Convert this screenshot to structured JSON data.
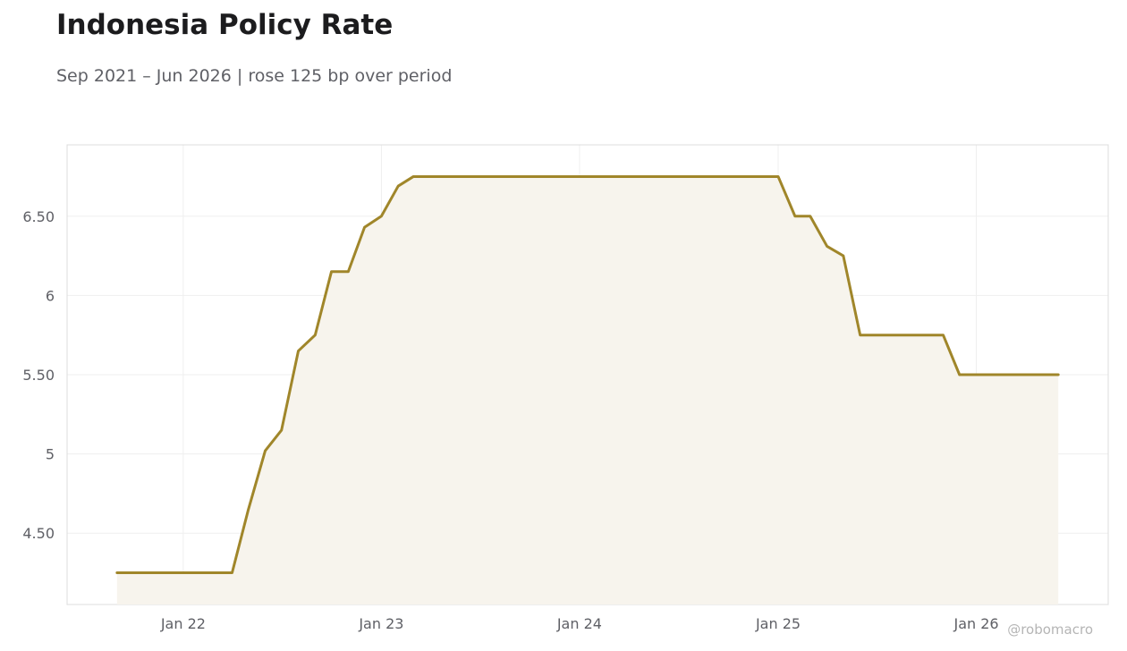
{
  "header": {
    "title": "Indonesia Policy Rate",
    "subtitle": "Sep 2021 – Jun 2026 | rose 125 bp over period"
  },
  "watermark": "@robomacro",
  "colors": {
    "line": "#a0862a",
    "fill": "#f7f4ed",
    "grid": "#efefef",
    "border": "#dddddd"
  },
  "chart_data": {
    "type": "area",
    "title": "Indonesia Policy Rate",
    "subtitle": "Sep 2021 – Jun 2026 | rose 125 bp over period",
    "xlabel": "",
    "ylabel": "",
    "xlim": [
      "2021-06-01",
      "2026-09-01"
    ],
    "ylim": [
      4.05,
      6.95
    ],
    "grid": true,
    "legend": "none",
    "x_ticks": [
      {
        "date": "2022-01-01",
        "label": "Jan 22"
      },
      {
        "date": "2023-01-01",
        "label": "Jan 23"
      },
      {
        "date": "2024-01-01",
        "label": "Jan 24"
      },
      {
        "date": "2025-01-01",
        "label": "Jan 25"
      },
      {
        "date": "2026-01-01",
        "label": "Jan 26"
      }
    ],
    "y_ticks": [
      {
        "value": 4.5,
        "label": "4.50"
      },
      {
        "value": 5,
        "label": "5"
      },
      {
        "value": 5.5,
        "label": "5.50"
      },
      {
        "value": 6,
        "label": "6"
      },
      {
        "value": 6.5,
        "label": "6.50"
      }
    ],
    "series": [
      {
        "x": [
          "2021-09-01",
          "2021-10-01",
          "2021-11-01",
          "2021-12-01",
          "2022-01-01",
          "2022-02-01",
          "2022-03-01",
          "2022-04-01",
          "2022-05-01",
          "2022-06-01",
          "2022-07-01",
          "2022-08-01",
          "2022-09-01",
          "2022-10-01",
          "2022-11-01",
          "2022-12-01",
          "2023-01-01",
          "2023-02-01",
          "2023-03-01",
          "2023-04-01",
          "2023-05-01",
          "2023-06-01",
          "2023-07-01",
          "2023-08-01",
          "2023-09-01",
          "2023-10-01",
          "2023-11-01",
          "2023-12-01",
          "2024-01-01",
          "2024-02-01",
          "2024-03-01",
          "2024-04-01",
          "2024-05-01",
          "2024-06-01",
          "2024-07-01",
          "2024-08-01",
          "2024-09-01",
          "2024-10-01",
          "2024-11-01",
          "2024-12-01",
          "2025-01-01",
          "2025-02-01",
          "2025-03-01",
          "2025-04-01",
          "2025-05-01",
          "2025-06-01",
          "2025-07-01",
          "2025-08-01",
          "2025-09-01",
          "2025-10-01",
          "2025-11-01",
          "2025-12-01",
          "2026-01-01",
          "2026-02-01",
          "2026-03-01",
          "2026-04-01",
          "2026-05-01",
          "2026-06-01"
        ],
        "values": [
          4.25,
          4.25,
          4.25,
          4.25,
          4.25,
          4.25,
          4.25,
          4.25,
          4.65,
          5.02,
          5.15,
          5.65,
          5.75,
          6.15,
          6.15,
          6.43,
          6.5,
          6.69,
          6.75,
          6.75,
          6.75,
          6.75,
          6.75,
          6.75,
          6.75,
          6.75,
          6.75,
          6.75,
          6.75,
          6.75,
          6.75,
          6.75,
          6.75,
          6.75,
          6.75,
          6.75,
          6.75,
          6.75,
          6.75,
          6.75,
          6.75,
          6.5,
          6.5,
          6.31,
          6.25,
          5.75,
          5.75,
          5.75,
          5.75,
          5.75,
          5.75,
          5.5,
          5.5,
          5.5,
          5.5,
          5.5,
          5.5,
          5.5
        ]
      }
    ]
  }
}
